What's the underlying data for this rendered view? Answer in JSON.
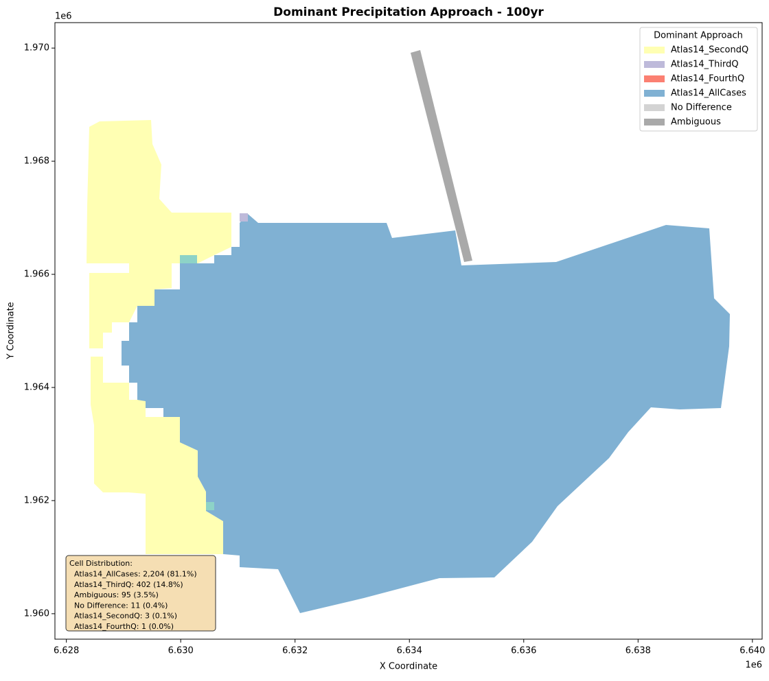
{
  "chart_data": {
    "type": "map",
    "title": "Dominant Precipitation Approach - 100yr",
    "x_label": "X Coordinate",
    "y_label": "Y Coordinate",
    "x_offset_label": "1e6",
    "y_offset_label": "1e6",
    "xlim": [
      6627800,
      6640170
    ],
    "ylim": [
      1959550,
      1970450
    ],
    "xticks": [
      {
        "value": 6628000,
        "label": "6.628"
      },
      {
        "value": 6630000,
        "label": "6.630"
      },
      {
        "value": 6632000,
        "label": "6.632"
      },
      {
        "value": 6634000,
        "label": "6.634"
      },
      {
        "value": 6636000,
        "label": "6.636"
      },
      {
        "value": 6638000,
        "label": "6.638"
      },
      {
        "value": 6640000,
        "label": "6.640"
      }
    ],
    "yticks": [
      {
        "value": 1960000,
        "label": "1.960"
      },
      {
        "value": 1962000,
        "label": "1.962"
      },
      {
        "value": 1964000,
        "label": "1.964"
      },
      {
        "value": 1966000,
        "label": "1.966"
      },
      {
        "value": 1968000,
        "label": "1.968"
      },
      {
        "value": 1970000,
        "label": "1.970"
      }
    ],
    "legend_title": "Dominant Approach",
    "legend_position": "upper right",
    "series": [
      {
        "name": "Atlas14_SecondQ",
        "color": "#ffffb3"
      },
      {
        "name": "Atlas14_ThirdQ",
        "color": "#bebada"
      },
      {
        "name": "Atlas14_FourthQ",
        "color": "#fb8072"
      },
      {
        "name": "Atlas14_AllCases",
        "color": "#80b1d3"
      },
      {
        "name": "No Difference",
        "color": "#d3d3d3"
      },
      {
        "name": "Ambiguous",
        "color": "#a9a9a9"
      }
    ],
    "annotation": {
      "title": "Cell Distribution:",
      "lines": [
        "Atlas14_AllCases: 2,204 (81.1%)",
        "Atlas14_ThirdQ: 402 (14.8%)",
        "Ambiguous: 95 (3.5%)",
        "No Difference: 11 (0.4%)",
        "Atlas14_SecondQ: 3 (0.1%)",
        "Atlas14_FourthQ: 1 (0.0%)"
      ]
    }
  }
}
